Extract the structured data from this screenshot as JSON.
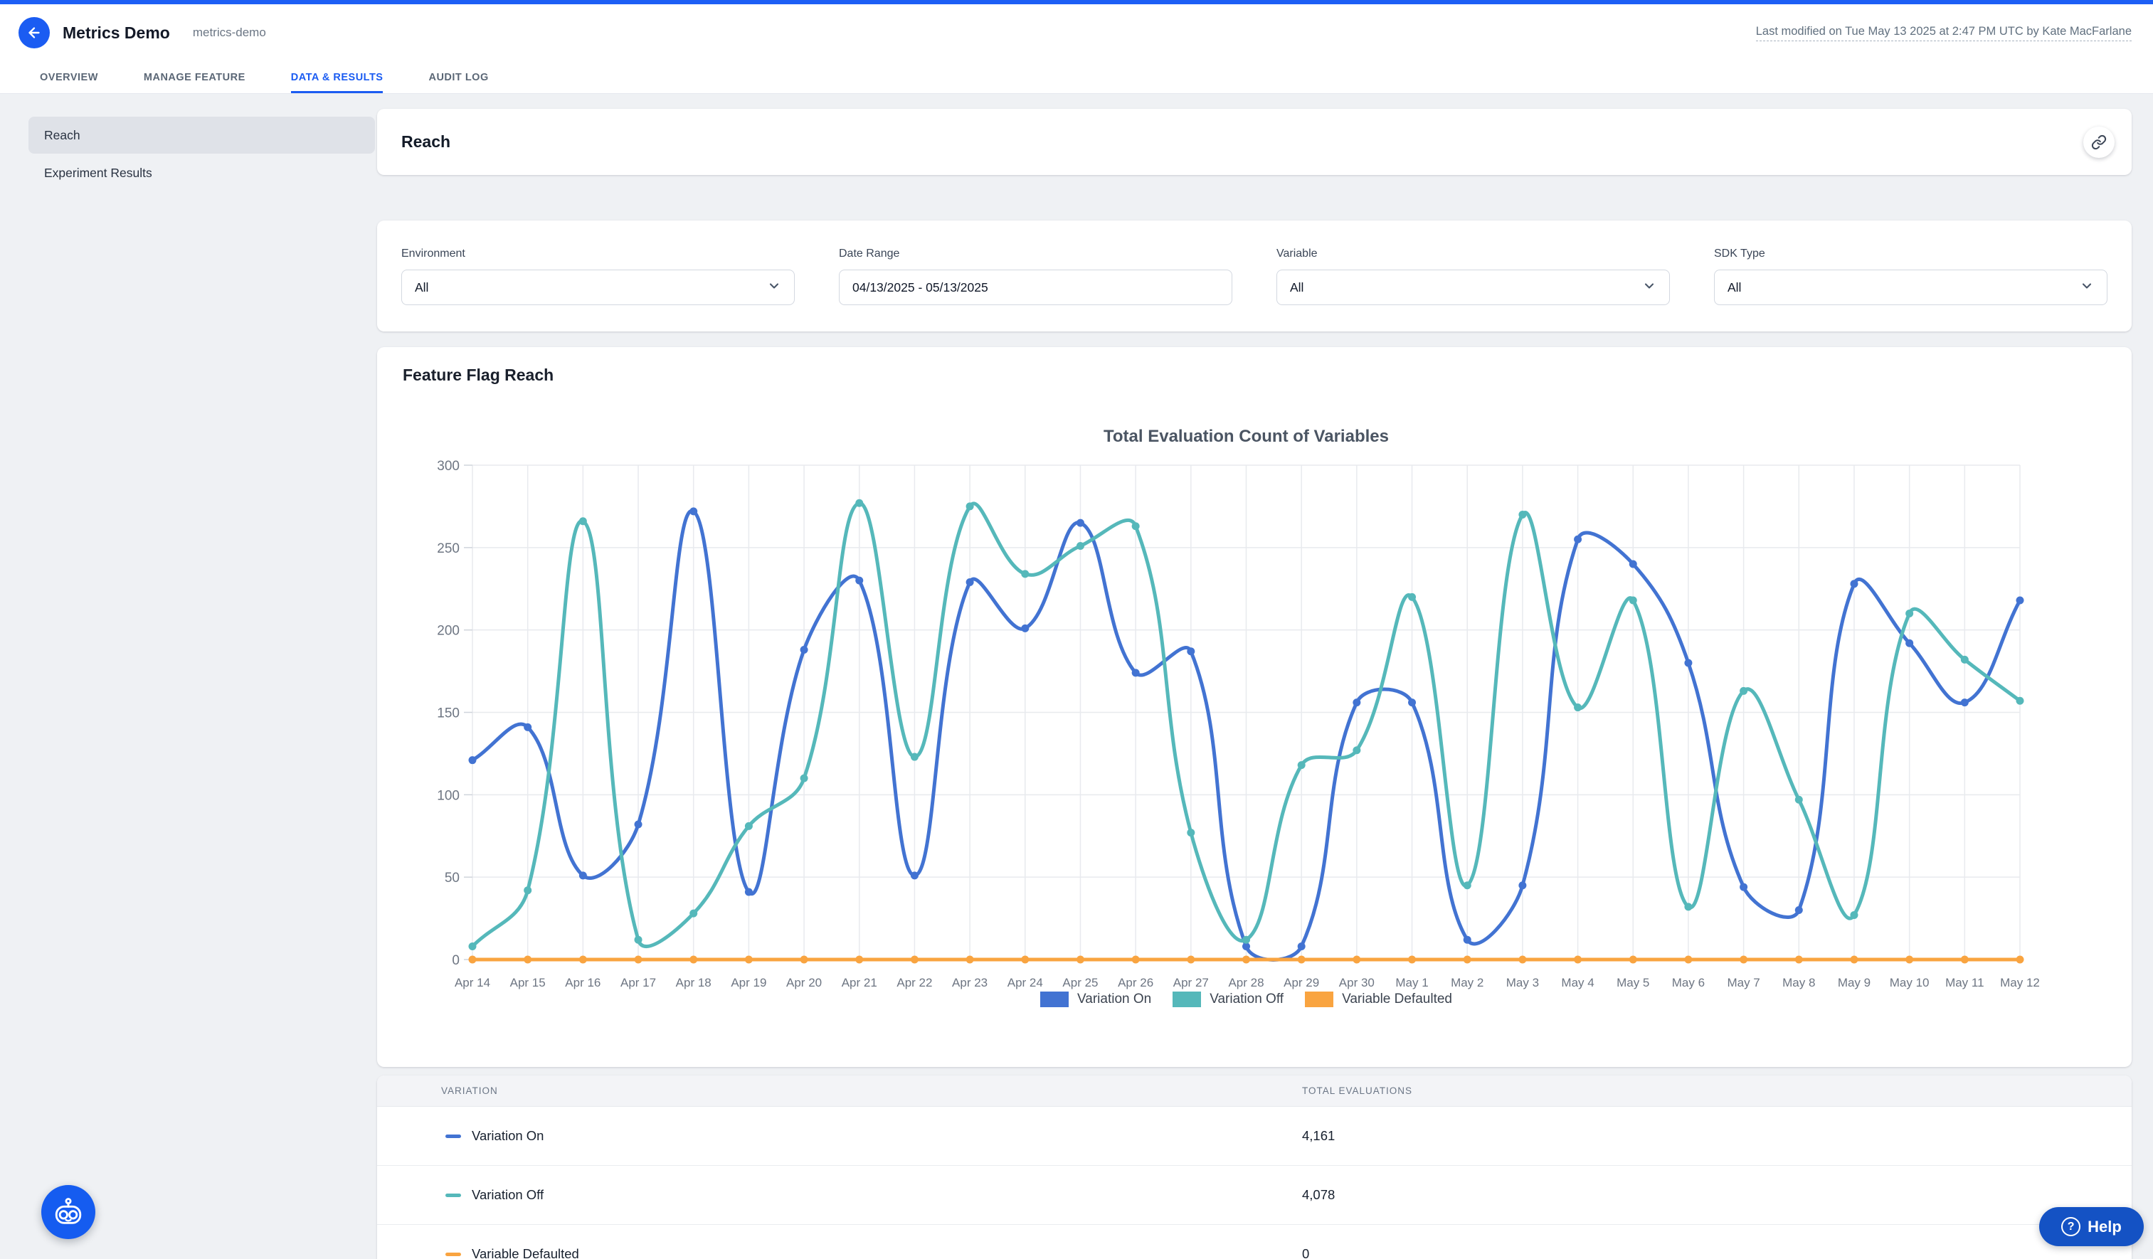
{
  "header": {
    "title": "Metrics Demo",
    "slug": "metrics-demo",
    "last_modified": "Last modified on Tue May 13 2025 at 2:47 PM UTC by Kate MacFarlane"
  },
  "tabs": [
    {
      "label": "OVERVIEW",
      "active": false
    },
    {
      "label": "MANAGE FEATURE",
      "active": false
    },
    {
      "label": "DATA & RESULTS",
      "active": true
    },
    {
      "label": "AUDIT LOG",
      "active": false
    }
  ],
  "sidebar": {
    "items": [
      {
        "label": "Reach",
        "active": true
      },
      {
        "label": "Experiment Results",
        "active": false
      }
    ]
  },
  "page": {
    "title": "Reach"
  },
  "filters": [
    {
      "label": "Environment",
      "value": "All",
      "type": "select"
    },
    {
      "label": "Date Range",
      "value": "04/13/2025 - 05/13/2025",
      "type": "input"
    },
    {
      "label": "Variable",
      "value": "All",
      "type": "select"
    },
    {
      "label": "SDK Type",
      "value": "All",
      "type": "select"
    }
  ],
  "chart_panel": {
    "title": "Feature Flag Reach"
  },
  "chart_data": {
    "type": "line",
    "title": "Total Evaluation Count of Variables",
    "xlabel": "",
    "ylabel": "",
    "ylim": [
      0,
      300
    ],
    "yticks": [
      0,
      50,
      100,
      150,
      200,
      250,
      300
    ],
    "grid": true,
    "curve": "smooth",
    "legend_position": "bottom",
    "x": [
      "Apr 14",
      "Apr 15",
      "Apr 16",
      "Apr 17",
      "Apr 18",
      "Apr 19",
      "Apr 20",
      "Apr 21",
      "Apr 22",
      "Apr 23",
      "Apr 24",
      "Apr 25",
      "Apr 26",
      "Apr 27",
      "Apr 28",
      "Apr 29",
      "Apr 30",
      "May 1",
      "May 2",
      "May 3",
      "May 4",
      "May 5",
      "May 6",
      "May 7",
      "May 8",
      "May 9",
      "May 10",
      "May 11",
      "May 12"
    ],
    "series": [
      {
        "name": "Variation On",
        "color": "#4273D2",
        "values": [
          121,
          141,
          51,
          82,
          272,
          41,
          188,
          230,
          51,
          229,
          201,
          265,
          174,
          187,
          8,
          8,
          156,
          156,
          12,
          45,
          255,
          240,
          180,
          44,
          30,
          228,
          192,
          156,
          218
        ]
      },
      {
        "name": "Variation Off",
        "color": "#55B8BA",
        "values": [
          8,
          42,
          266,
          12,
          28,
          81,
          110,
          277,
          123,
          275,
          234,
          251,
          263,
          77,
          12,
          118,
          127,
          220,
          45,
          270,
          153,
          218,
          32,
          163,
          97,
          27,
          210,
          182,
          157
        ]
      },
      {
        "name": "Variable Defaulted",
        "color": "#F9A440",
        "values": [
          0,
          0,
          0,
          0,
          0,
          0,
          0,
          0,
          0,
          0,
          0,
          0,
          0,
          0,
          0,
          0,
          0,
          0,
          0,
          0,
          0,
          0,
          0,
          0,
          0,
          0,
          0,
          0,
          0
        ]
      }
    ]
  },
  "table": {
    "columns": [
      "VARIATION",
      "TOTAL EVALUATIONS"
    ],
    "rows": [
      {
        "label": "Variation On",
        "color": "#4273D2",
        "total": "4,161"
      },
      {
        "label": "Variation Off",
        "color": "#55B8BA",
        "total": "4,078"
      },
      {
        "label": "Variable Defaulted",
        "color": "#F9A440",
        "total": "0"
      }
    ]
  },
  "help": {
    "label": "Help"
  },
  "colors": {
    "top_bar": "#1D5FF5",
    "accent": "#1B5CF2",
    "robot_button": "#155CF0",
    "help_button": "#1452C4"
  }
}
